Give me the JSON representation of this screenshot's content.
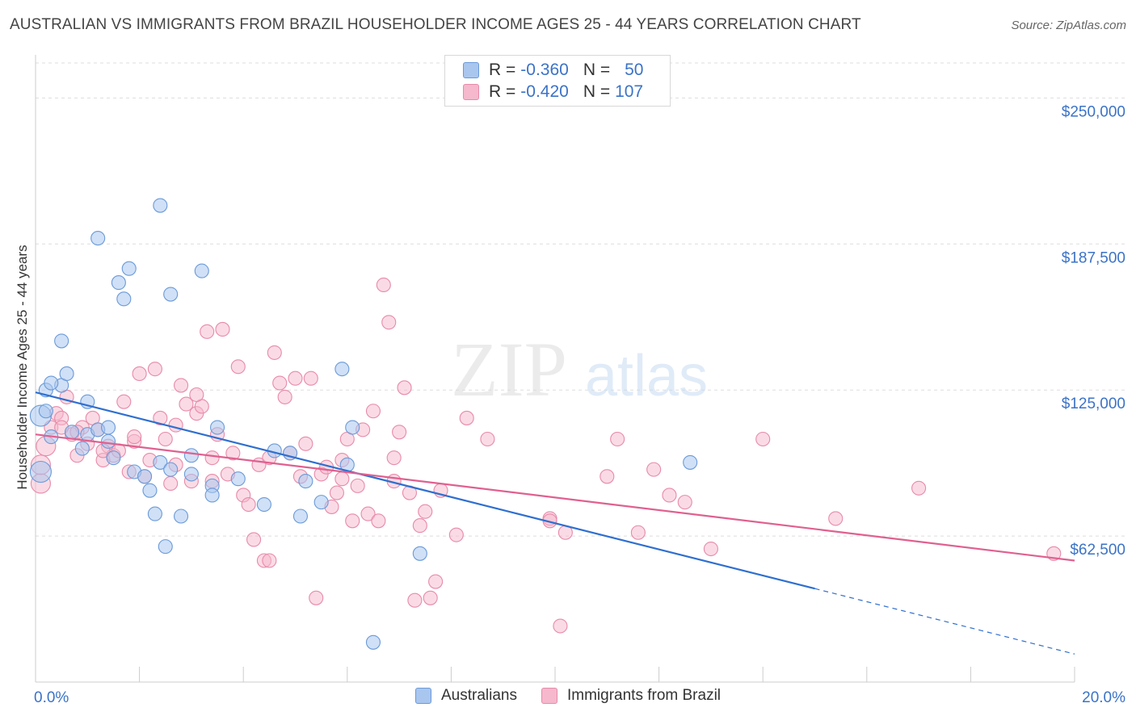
{
  "header": {
    "title": "AUSTRALIAN VS IMMIGRANTS FROM BRAZIL HOUSEHOLDER INCOME AGES 25 - 44 YEARS CORRELATION CHART",
    "source": "Source: ZipAtlas.com"
  },
  "watermark": {
    "zip": "ZIP",
    "atlas": "atlas"
  },
  "legend": {
    "rows": [
      {
        "r_label": "R =",
        "r_value": "-0.360",
        "n_label": "N =",
        "n_value": "50",
        "color": "#8fb5ea"
      },
      {
        "r_label": "R =",
        "r_value": "-0.420",
        "n_label": "N =",
        "n_value": "107",
        "color": "#f0a5c0"
      }
    ]
  },
  "bottom_legend": {
    "series1": "Australians",
    "series2": "Immigrants from Brazil"
  },
  "colors": {
    "blue_fill": "#a9c6ef",
    "blue_stroke": "#6a9ad9",
    "blue_line": "#2f6fcf",
    "pink_fill": "#f5b8cc",
    "pink_stroke": "#e88aa9",
    "pink_line": "#e0608f",
    "tick_label": "#3b73c7"
  },
  "chart_data": {
    "type": "scatter",
    "title": "AUSTRALIAN VS IMMIGRANTS FROM BRAZIL HOUSEHOLDER INCOME AGES 25 - 44 YEARS CORRELATION CHART",
    "xlabel": "",
    "ylabel": "Householder Income Ages 25 - 44 years",
    "xlim": [
      0,
      20
    ],
    "ylim": [
      0,
      265000
    ],
    "x_tick_labels": [
      "0.0%",
      "20.0%"
    ],
    "y_ticks": [
      62500,
      125000,
      187500,
      250000
    ],
    "y_tick_labels": [
      "$62,500",
      "$125,000",
      "$187,500",
      "$250,000"
    ],
    "grid": true,
    "legend_position": "top-center",
    "series": [
      {
        "name": "Australians",
        "trend": {
          "x": [
            0,
            15
          ],
          "y": [
            124000,
            40000
          ],
          "dashed_to": [
            20,
            12000
          ]
        },
        "points": [
          [
            0.1,
            114000
          ],
          [
            0.2,
            125000
          ],
          [
            0.5,
            127000
          ],
          [
            0.3,
            128000
          ],
          [
            0.6,
            132000
          ],
          [
            0.2,
            116000
          ],
          [
            0.3,
            105000
          ],
          [
            0.7,
            107000
          ],
          [
            1.0,
            106000
          ],
          [
            1.2,
            108000
          ],
          [
            1.4,
            103000
          ],
          [
            0.9,
            100000
          ],
          [
            0.5,
            146000
          ],
          [
            1.0,
            120000
          ],
          [
            1.4,
            109000
          ],
          [
            1.2,
            190000
          ],
          [
            1.6,
            171000
          ],
          [
            1.8,
            177000
          ],
          [
            1.7,
            164000
          ],
          [
            2.4,
            204000
          ],
          [
            2.6,
            166000
          ],
          [
            3.2,
            176000
          ],
          [
            1.9,
            90000
          ],
          [
            2.1,
            88000
          ],
          [
            2.2,
            82000
          ],
          [
            2.4,
            94000
          ],
          [
            2.3,
            72000
          ],
          [
            2.8,
            71000
          ],
          [
            2.6,
            91000
          ],
          [
            3.0,
            97000
          ],
          [
            3.0,
            89000
          ],
          [
            3.4,
            84000
          ],
          [
            3.4,
            80000
          ],
          [
            3.5,
            109000
          ],
          [
            2.5,
            58000
          ],
          [
            3.9,
            87000
          ],
          [
            4.4,
            76000
          ],
          [
            4.6,
            99000
          ],
          [
            5.1,
            71000
          ],
          [
            5.2,
            86000
          ],
          [
            5.5,
            77000
          ],
          [
            5.9,
            134000
          ],
          [
            6.0,
            93000
          ],
          [
            6.1,
            109000
          ],
          [
            6.5,
            17000
          ],
          [
            7.4,
            55000
          ],
          [
            0.1,
            90000
          ],
          [
            12.6,
            94000
          ],
          [
            1.5,
            96000
          ],
          [
            4.9,
            98000
          ]
        ]
      },
      {
        "name": "Immigrants from Brazil",
        "trend": {
          "x": [
            0,
            20
          ],
          "y": [
            106000,
            52000
          ]
        },
        "points": [
          [
            0.1,
            85000
          ],
          [
            0.1,
            93000
          ],
          [
            0.2,
            101000
          ],
          [
            0.3,
            109000
          ],
          [
            0.4,
            115000
          ],
          [
            0.5,
            113000
          ],
          [
            0.6,
            122000
          ],
          [
            0.7,
            106000
          ],
          [
            0.8,
            97000
          ],
          [
            0.9,
            109000
          ],
          [
            1.0,
            102000
          ],
          [
            1.1,
            113000
          ],
          [
            1.2,
            108000
          ],
          [
            1.3,
            95000
          ],
          [
            1.4,
            101000
          ],
          [
            1.5,
            97000
          ],
          [
            1.6,
            99000
          ],
          [
            1.7,
            120000
          ],
          [
            1.8,
            90000
          ],
          [
            1.9,
            103000
          ],
          [
            2.0,
            132000
          ],
          [
            2.1,
            88000
          ],
          [
            2.2,
            95000
          ],
          [
            2.3,
            134000
          ],
          [
            2.4,
            113000
          ],
          [
            2.5,
            104000
          ],
          [
            2.6,
            85000
          ],
          [
            2.7,
            110000
          ],
          [
            2.8,
            127000
          ],
          [
            2.9,
            119000
          ],
          [
            3.0,
            86000
          ],
          [
            3.1,
            115000
          ],
          [
            3.2,
            118000
          ],
          [
            3.3,
            150000
          ],
          [
            3.4,
            86000
          ],
          [
            3.5,
            106000
          ],
          [
            3.6,
            151000
          ],
          [
            3.7,
            89000
          ],
          [
            3.8,
            98000
          ],
          [
            3.9,
            135000
          ],
          [
            4.0,
            80000
          ],
          [
            4.1,
            76000
          ],
          [
            4.2,
            61000
          ],
          [
            4.3,
            93000
          ],
          [
            4.4,
            52000
          ],
          [
            4.5,
            52000
          ],
          [
            4.6,
            141000
          ],
          [
            4.7,
            128000
          ],
          [
            4.8,
            122000
          ],
          [
            4.9,
            98000
          ],
          [
            5.0,
            130000
          ],
          [
            5.1,
            88000
          ],
          [
            5.2,
            102000
          ],
          [
            5.3,
            130000
          ],
          [
            5.4,
            36000
          ],
          [
            5.5,
            89000
          ],
          [
            5.6,
            92000
          ],
          [
            5.7,
            75000
          ],
          [
            5.8,
            81000
          ],
          [
            5.9,
            95000
          ],
          [
            6.0,
            104000
          ],
          [
            6.1,
            69000
          ],
          [
            6.2,
            84000
          ],
          [
            6.3,
            108000
          ],
          [
            6.4,
            72000
          ],
          [
            6.5,
            116000
          ],
          [
            6.6,
            69000
          ],
          [
            6.7,
            170000
          ],
          [
            6.8,
            154000
          ],
          [
            6.9,
            86000
          ],
          [
            7.0,
            107000
          ],
          [
            7.1,
            126000
          ],
          [
            7.2,
            81000
          ],
          [
            7.3,
            35000
          ],
          [
            7.4,
            67000
          ],
          [
            7.5,
            73000
          ],
          [
            7.6,
            36000
          ],
          [
            7.7,
            43000
          ],
          [
            7.8,
            82000
          ],
          [
            8.1,
            63000
          ],
          [
            8.3,
            113000
          ],
          [
            8.7,
            104000
          ],
          [
            9.9,
            70000
          ],
          [
            10.1,
            24000
          ],
          [
            10.2,
            64000
          ],
          [
            11.0,
            88000
          ],
          [
            11.2,
            104000
          ],
          [
            11.6,
            64000
          ],
          [
            11.9,
            91000
          ],
          [
            12.2,
            80000
          ],
          [
            12.5,
            77000
          ],
          [
            13.0,
            57000
          ],
          [
            14.0,
            104000
          ],
          [
            15.4,
            70000
          ],
          [
            17.0,
            83000
          ],
          [
            19.6,
            55000
          ],
          [
            9.9,
            69000
          ],
          [
            3.4,
            96000
          ],
          [
            1.9,
            105000
          ],
          [
            0.5,
            109000
          ],
          [
            0.8,
            107000
          ],
          [
            2.7,
            93000
          ],
          [
            3.1,
            123000
          ],
          [
            4.5,
            96000
          ],
          [
            5.9,
            87000
          ],
          [
            6.9,
            96000
          ],
          [
            1.3,
            99000
          ]
        ]
      }
    ]
  }
}
